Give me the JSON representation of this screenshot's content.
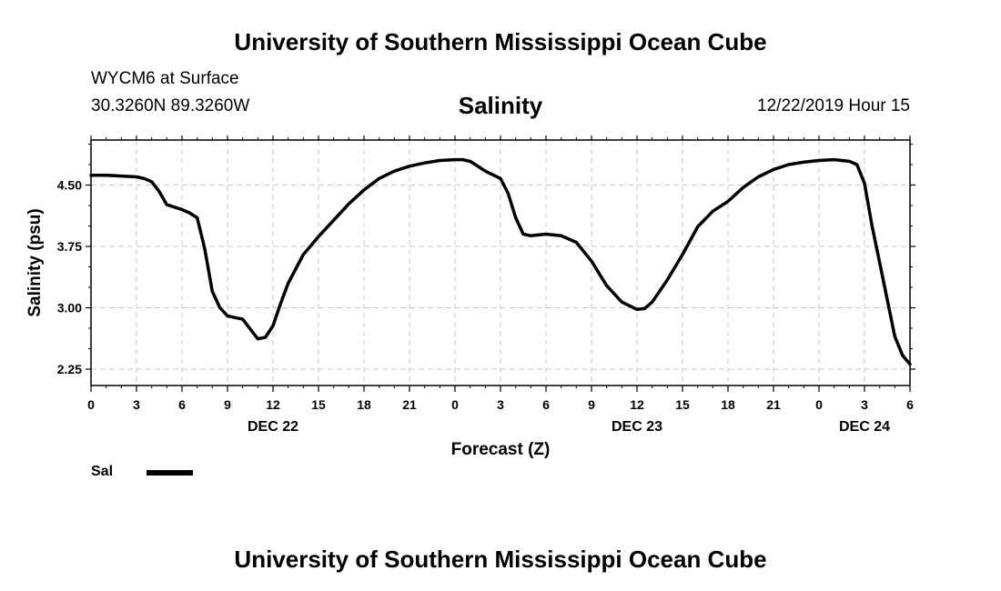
{
  "header": {
    "title": "University of Southern Mississippi Ocean Cube"
  },
  "footer": {
    "title": "University of Southern Mississippi Ocean Cube"
  },
  "station": {
    "name": "WYCM6 at Surface",
    "coords": "30.3260N 89.3260W"
  },
  "timestamp": "12/22/2019 Hour 15",
  "legend": {
    "label": "Sal",
    "color": "#000000"
  },
  "chart_data": {
    "type": "line",
    "title": "Salinity",
    "xlabel": "Forecast (Z)",
    "ylabel": "Salinity (psu)",
    "xlim": [
      0,
      54
    ],
    "ylim": [
      2.05,
      5.05
    ],
    "grid": true,
    "legend_position": "bottom-left",
    "x_ticks": [
      {
        "x": 0,
        "label": "0"
      },
      {
        "x": 3,
        "label": "3"
      },
      {
        "x": 6,
        "label": "6"
      },
      {
        "x": 9,
        "label": "9"
      },
      {
        "x": 12,
        "label": "12"
      },
      {
        "x": 15,
        "label": "15"
      },
      {
        "x": 18,
        "label": "18"
      },
      {
        "x": 21,
        "label": "21"
      },
      {
        "x": 24,
        "label": "0"
      },
      {
        "x": 27,
        "label": "3"
      },
      {
        "x": 30,
        "label": "6"
      },
      {
        "x": 33,
        "label": "9"
      },
      {
        "x": 36,
        "label": "12"
      },
      {
        "x": 39,
        "label": "15"
      },
      {
        "x": 42,
        "label": "18"
      },
      {
        "x": 45,
        "label": "21"
      },
      {
        "x": 48,
        "label": "0"
      },
      {
        "x": 51,
        "label": "3"
      },
      {
        "x": 54,
        "label": "6"
      }
    ],
    "date_labels": [
      {
        "x": 12,
        "label": "DEC 22"
      },
      {
        "x": 36,
        "label": "DEC 23"
      },
      {
        "x": 51,
        "label": "DEC 24"
      }
    ],
    "y_ticks": [
      {
        "y": 2.25,
        "label": "2.25"
      },
      {
        "y": 3.0,
        "label": "3.00"
      },
      {
        "y": 3.75,
        "label": "3.75"
      },
      {
        "y": 4.5,
        "label": "4.50"
      }
    ],
    "series": [
      {
        "name": "Sal",
        "color": "#000000",
        "x": [
          0,
          1,
          2,
          3,
          3.5,
          4,
          4.5,
          5,
          6,
          6.5,
          7,
          7.5,
          8,
          8.5,
          9,
          10,
          10.5,
          11,
          11.5,
          12,
          12.5,
          13,
          14,
          15,
          16,
          17,
          18,
          19,
          20,
          21,
          22,
          23,
          24,
          24.5,
          25,
          26,
          27,
          27.5,
          28,
          28.5,
          29,
          30,
          31,
          32,
          33,
          34,
          35,
          36,
          36.5,
          37,
          38,
          39,
          40,
          41,
          42,
          43,
          44,
          45,
          46,
          47,
          48,
          49,
          50,
          50.5,
          51,
          51.5,
          52,
          52.5,
          53,
          53.5,
          54
        ],
        "y": [
          4.62,
          4.62,
          4.61,
          4.6,
          4.58,
          4.54,
          4.42,
          4.26,
          4.2,
          4.16,
          4.1,
          3.72,
          3.2,
          3.0,
          2.9,
          2.86,
          2.74,
          2.62,
          2.64,
          2.78,
          3.05,
          3.3,
          3.65,
          3.87,
          4.07,
          4.27,
          4.44,
          4.58,
          4.67,
          4.73,
          4.77,
          4.8,
          4.81,
          4.81,
          4.79,
          4.67,
          4.58,
          4.4,
          4.1,
          3.9,
          3.88,
          3.9,
          3.88,
          3.8,
          3.57,
          3.27,
          3.07,
          2.98,
          2.99,
          3.07,
          3.34,
          3.65,
          3.99,
          4.18,
          4.3,
          4.47,
          4.6,
          4.69,
          4.75,
          4.78,
          4.8,
          4.81,
          4.79,
          4.75,
          4.52,
          4.0,
          3.55,
          3.1,
          2.65,
          2.42,
          2.31
        ]
      }
    ]
  }
}
